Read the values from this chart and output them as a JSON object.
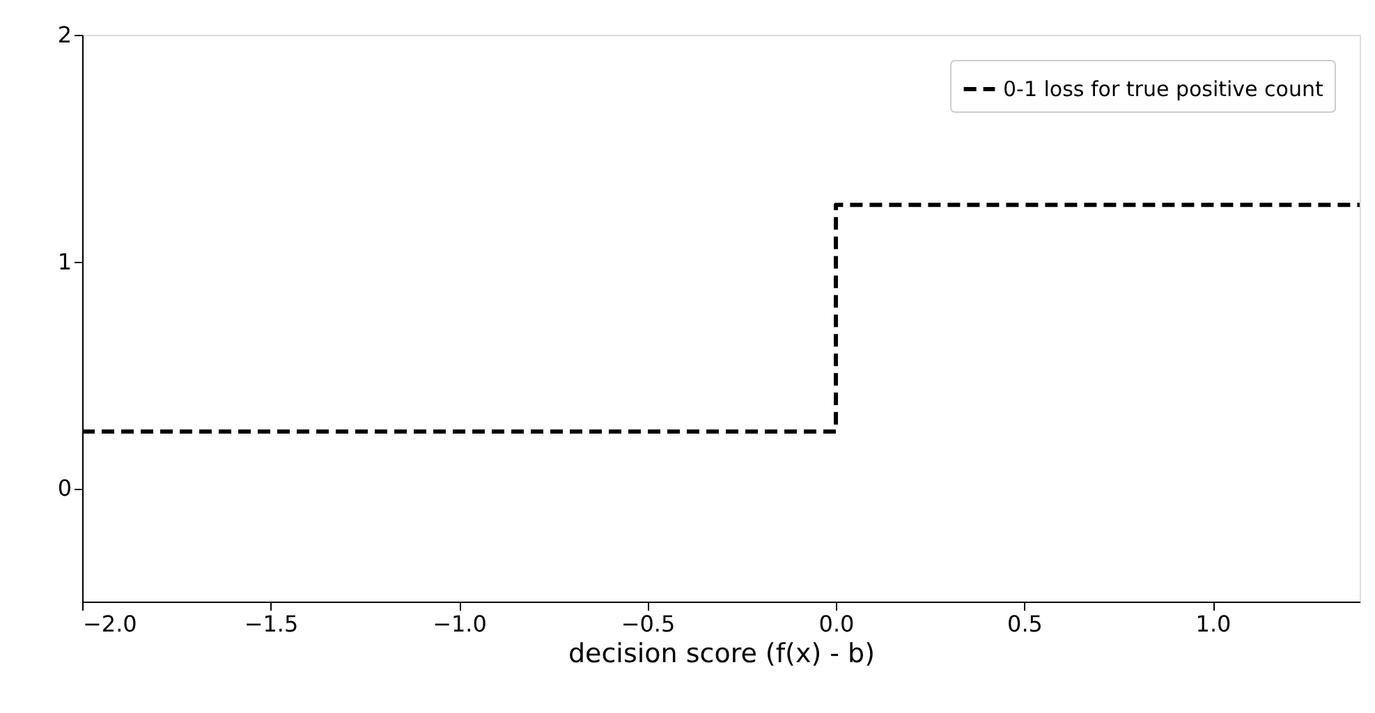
{
  "chart_data": {
    "type": "line",
    "xlabel": "decision score (f(x) - b)",
    "x": [
      -2,
      0,
      0,
      1.39
    ],
    "series": [
      {
        "name": "0-1 loss for true positive count",
        "color": "#000000",
        "values": [
          0.25,
          0.25,
          1.25,
          1.25
        ]
      }
    ],
    "xlim": [
      -2,
      1.39
    ],
    "ylim": [
      -0.5,
      2
    ],
    "xticks": [
      {
        "value": -2,
        "label": "−2.0"
      },
      {
        "value": -1.5,
        "label": "−1.5"
      },
      {
        "value": -1,
        "label": "−1.0"
      },
      {
        "value": -0.5,
        "label": "−0.5"
      },
      {
        "value": 0,
        "label": "0.0"
      },
      {
        "value": 0.5,
        "label": "0.5"
      },
      {
        "value": 1,
        "label": "1.0"
      }
    ],
    "yticks": [
      0,
      1,
      2
    ],
    "line_style": "dashed",
    "marker": "none",
    "grid": false,
    "legend": "top right"
  }
}
